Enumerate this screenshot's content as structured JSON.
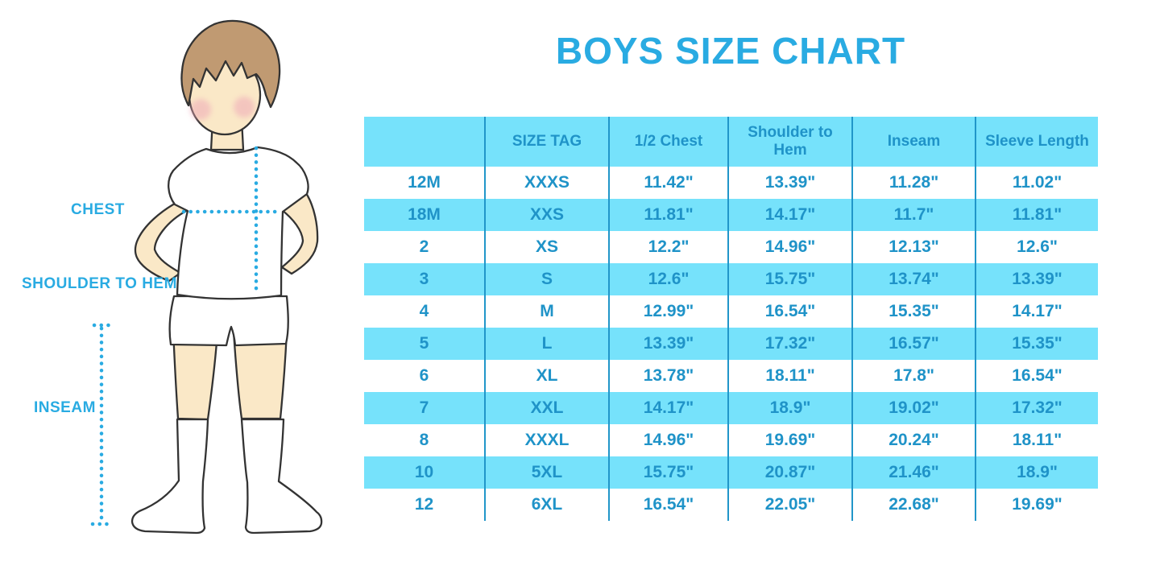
{
  "title": "BOYS SIZE CHART",
  "figure": {
    "labels": {
      "chest": "CHEST",
      "shoulder_to_hem": "SHOULDER TO HEM",
      "inseam": "INSEAM"
    }
  },
  "colors": {
    "accent_blue": "#29ABE2",
    "table_text_blue": "#1F93C8",
    "row_cyan": "#76E2FB",
    "divider_blue": "#2196C9",
    "skin": "#FAE8C7",
    "hair_brown": "#C09A72",
    "cheek_pink": "#EFA9B8",
    "outline_dark": "#333333"
  },
  "chart_data": {
    "type": "table",
    "title": "BOYS SIZE CHART",
    "columns": [
      "",
      "SIZE TAG",
      "1/2 Chest",
      "Shoulder to Hem",
      "Inseam",
      "Sleeve Length"
    ],
    "rows": [
      [
        "12M",
        "XXXS",
        "11.42\"",
        "13.39\"",
        "11.28\"",
        "11.02\""
      ],
      [
        "18M",
        "XXS",
        "11.81\"",
        "14.17\"",
        "11.7\"",
        "11.81\""
      ],
      [
        "2",
        "XS",
        "12.2\"",
        "14.96\"",
        "12.13\"",
        "12.6\""
      ],
      [
        "3",
        "S",
        "12.6\"",
        "15.75\"",
        "13.74\"",
        "13.39\""
      ],
      [
        "4",
        "M",
        "12.99\"",
        "16.54\"",
        "15.35\"",
        "14.17\""
      ],
      [
        "5",
        "L",
        "13.39\"",
        "17.32\"",
        "16.57\"",
        "15.35\""
      ],
      [
        "6",
        "XL",
        "13.78\"",
        "18.11\"",
        "17.8\"",
        "16.54\""
      ],
      [
        "7",
        "XXL",
        "14.17\"",
        "18.9\"",
        "19.02\"",
        "17.32\""
      ],
      [
        "8",
        "XXXL",
        "14.96\"",
        "19.69\"",
        "20.24\"",
        "18.11\""
      ],
      [
        "10",
        "5XL",
        "15.75\"",
        "20.87\"",
        "21.46\"",
        "18.9\""
      ],
      [
        "12",
        "6XL",
        "16.54\"",
        "22.05\"",
        "22.68\"",
        "19.69\""
      ]
    ],
    "units": "inches",
    "layout_hints": {
      "header_background": "#76E2FB",
      "row_striping": "white / #76E2FB alternating starting white",
      "column_dividers": "vertical blue lines only"
    }
  }
}
